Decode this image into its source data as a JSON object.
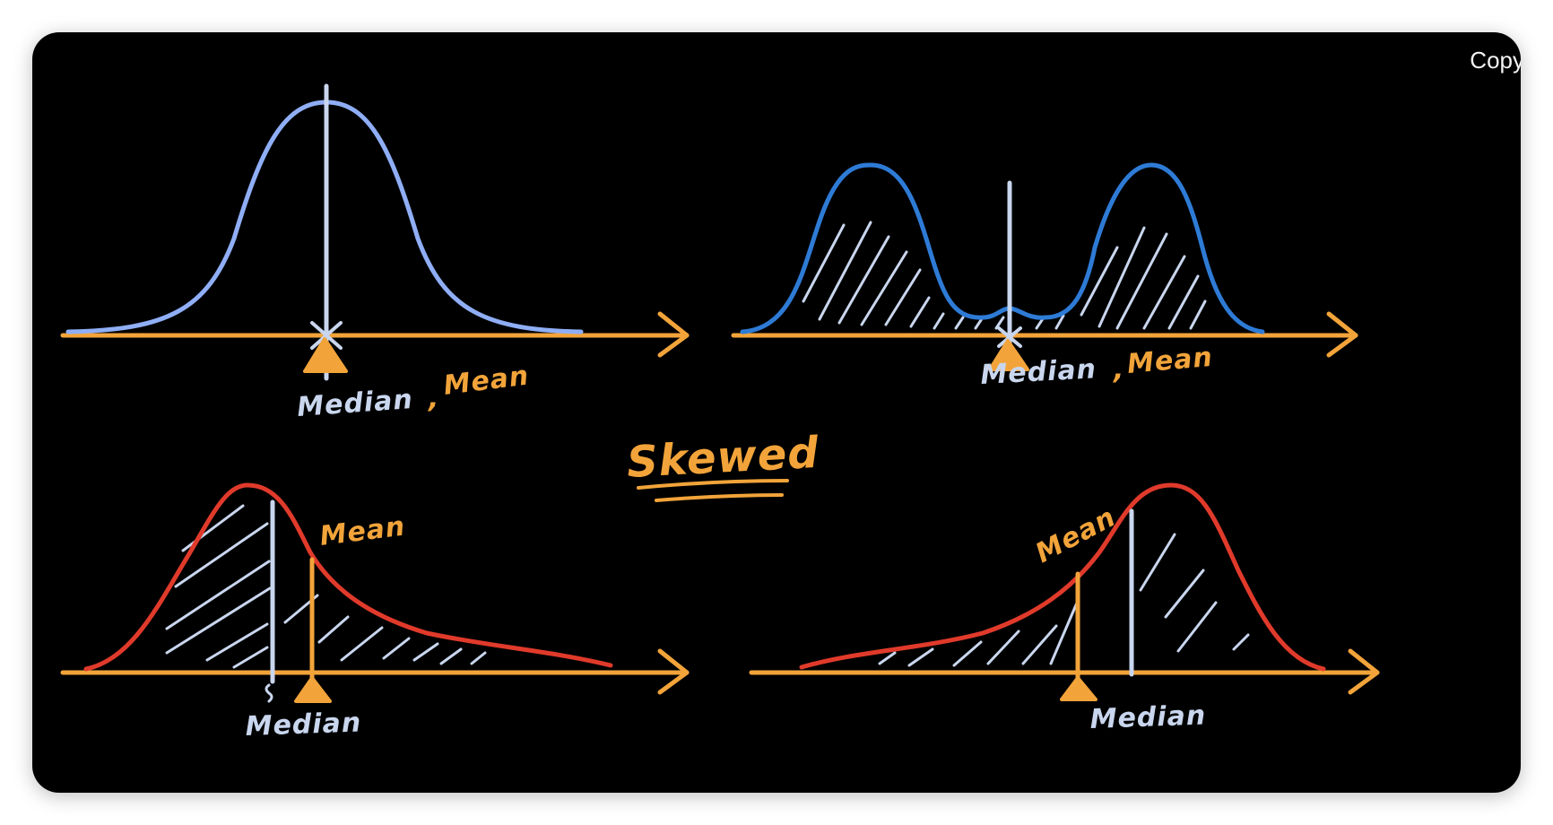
{
  "colors": {
    "background": "#000000",
    "axis": "#F2A43A",
    "normal_curve": "#8FAEF5",
    "bimodal_curve": "#2E7BD6",
    "skewed_curve": "#E03A2B",
    "median_line": "#C9D6EE",
    "mean_line": "#F2A43A",
    "hatch": "#C9D6EE"
  },
  "copy_label": "Copy",
  "title": "Skewed",
  "panels": {
    "normal": {
      "median_label": "Median",
      "separator": ",",
      "mean_label": "Mean"
    },
    "bimodal": {
      "median_label": "Median",
      "separator": ",",
      "mean_label": "Mean"
    },
    "right_skewed": {
      "mean_label": "Mean",
      "median_label": "Median"
    },
    "left_skewed": {
      "mean_label": "Mean",
      "median_label": "Median"
    }
  }
}
